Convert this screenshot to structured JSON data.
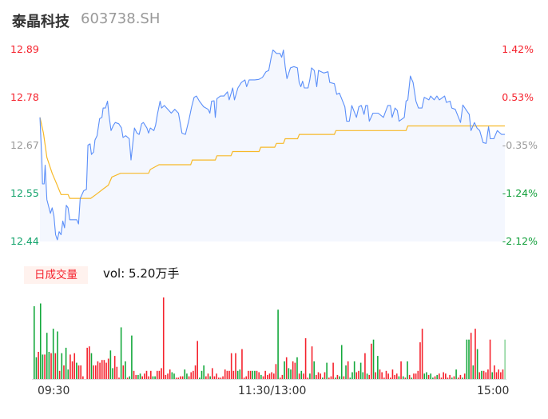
{
  "header": {
    "name": "泰晶科技",
    "code": "603738.SH"
  },
  "chart_data": {
    "type": "line",
    "price_axis": {
      "ylim": [
        12.44,
        12.89
      ],
      "ticks": [
        "12.89",
        "12.78",
        "12.67",
        "12.55",
        "12.44"
      ]
    },
    "percent_axis": {
      "ticks": [
        "1.42%",
        "0.53%",
        "-0.35%",
        "-1.24%",
        "-2.12%"
      ]
    },
    "x_ticks": [
      "09:30",
      "11:30/13:00",
      "15:00"
    ],
    "x_range_minutes": [
      0,
      240
    ],
    "colors": {
      "price": "#5b8ff9",
      "avg": "#f7b928",
      "up": "#f5222d",
      "down": "#13a83b",
      "up_text": "#f5222d",
      "down_text": "#12a36b",
      "flat_text": "#999999",
      "area": "#f4f7fe"
    },
    "price_series": [
      [
        0,
        12.731
      ],
      [
        1,
        12.631
      ],
      [
        1.3,
        12.575
      ],
      [
        2.2,
        12.575
      ],
      [
        2.7,
        12.619
      ],
      [
        3.6,
        12.538
      ],
      [
        5.4,
        12.506
      ],
      [
        6.3,
        12.519
      ],
      [
        7.2,
        12.5
      ],
      [
        8.1,
        12.456
      ],
      [
        9,
        12.444
      ],
      [
        9.9,
        12.463
      ],
      [
        10.9,
        12.456
      ],
      [
        11.8,
        12.488
      ],
      [
        12.7,
        12.472
      ],
      [
        13.6,
        12.525
      ],
      [
        14.5,
        12.519
      ],
      [
        15.4,
        12.491
      ],
      [
        19,
        12.491
      ],
      [
        19.9,
        12.481
      ],
      [
        20.8,
        12.541
      ],
      [
        22.6,
        12.559
      ],
      [
        24,
        12.562
      ],
      [
        24.8,
        12.666
      ],
      [
        25.9,
        12.669
      ],
      [
        26.6,
        12.644
      ],
      [
        27.7,
        12.65
      ],
      [
        28.4,
        12.678
      ],
      [
        29.5,
        12.688
      ],
      [
        30.8,
        12.728
      ],
      [
        32,
        12.731
      ],
      [
        32.6,
        12.753
      ],
      [
        33.8,
        12.753
      ],
      [
        34.9,
        12.769
      ],
      [
        35.6,
        12.738
      ],
      [
        36.7,
        12.7
      ],
      [
        38,
        12.713
      ],
      [
        38.9,
        12.719
      ],
      [
        40.7,
        12.716
      ],
      [
        42.1,
        12.706
      ],
      [
        42.9,
        12.684
      ],
      [
        44.3,
        12.688
      ],
      [
        46.1,
        12.681
      ],
      [
        47,
        12.631
      ],
      [
        47.9,
        12.669
      ],
      [
        48.8,
        12.706
      ],
      [
        50.1,
        12.694
      ],
      [
        51.2,
        12.691
      ],
      [
        52.5,
        12.716
      ],
      [
        53.4,
        12.719
      ],
      [
        55.2,
        12.706
      ],
      [
        56.1,
        12.694
      ],
      [
        57,
        12.706
      ],
      [
        58.8,
        12.7
      ],
      [
        59.7,
        12.713
      ],
      [
        60.6,
        12.738
      ],
      [
        62,
        12.769
      ],
      [
        62.8,
        12.753
      ],
      [
        64.2,
        12.759
      ],
      [
        66,
        12.75
      ],
      [
        67.8,
        12.741
      ],
      [
        69.6,
        12.75
      ],
      [
        71.5,
        12.741
      ],
      [
        73.3,
        12.694
      ],
      [
        75.1,
        12.691
      ],
      [
        76.9,
        12.725
      ],
      [
        78.3,
        12.756
      ],
      [
        79.6,
        12.778
      ],
      [
        80.8,
        12.781
      ],
      [
        82.3,
        12.769
      ],
      [
        84.5,
        12.756
      ],
      [
        86.8,
        12.75
      ],
      [
        87.7,
        12.741
      ],
      [
        88.6,
        12.769
      ],
      [
        89.9,
        12.77
      ],
      [
        90.5,
        12.731
      ],
      [
        91.4,
        12.775
      ],
      [
        93.2,
        12.781
      ],
      [
        95,
        12.781
      ],
      [
        96.8,
        12.791
      ],
      [
        97.7,
        12.772
      ],
      [
        99.5,
        12.8
      ],
      [
        100.4,
        12.772
      ],
      [
        102.2,
        12.8
      ],
      [
        104,
        12.813
      ],
      [
        105.8,
        12.819
      ],
      [
        106.7,
        12.803
      ],
      [
        108,
        12.819
      ],
      [
        110.9,
        12.819
      ],
      [
        113,
        12.82
      ],
      [
        114.9,
        12.825
      ],
      [
        116.7,
        12.838
      ],
      [
        118.1,
        12.841
      ],
      [
        119.4,
        12.872
      ],
      [
        120.3,
        12.889
      ],
      [
        122.1,
        12.881
      ],
      [
        123.9,
        12.881
      ],
      [
        124.8,
        12.872
      ],
      [
        125.7,
        12.889
      ],
      [
        126.6,
        12.85
      ],
      [
        127.5,
        12.822
      ],
      [
        129.3,
        12.847
      ],
      [
        131.1,
        12.85
      ],
      [
        132.9,
        12.847
      ],
      [
        133.8,
        12.813
      ],
      [
        134.7,
        12.803
      ],
      [
        135.6,
        12.816
      ],
      [
        136.5,
        12.8
      ],
      [
        138.4,
        12.8
      ],
      [
        139.3,
        12.819
      ],
      [
        140.2,
        12.847
      ],
      [
        141.6,
        12.841
      ],
      [
        142.9,
        12.803
      ],
      [
        143.8,
        12.841
      ],
      [
        146.5,
        12.835
      ],
      [
        148.7,
        12.838
      ],
      [
        149.6,
        12.813
      ],
      [
        152,
        12.81
      ],
      [
        153.2,
        12.785
      ],
      [
        154.6,
        12.788
      ],
      [
        157.4,
        12.756
      ],
      [
        158.3,
        12.722
      ],
      [
        159.7,
        12.722
      ],
      [
        161,
        12.759
      ],
      [
        163.4,
        12.731
      ],
      [
        164.6,
        12.756
      ],
      [
        165.9,
        12.759
      ],
      [
        167.3,
        12.738
      ],
      [
        168.2,
        12.759
      ],
      [
        169.1,
        12.759
      ],
      [
        170,
        12.722
      ],
      [
        171.9,
        12.741
      ],
      [
        174.6,
        12.741
      ],
      [
        177.3,
        12.731
      ],
      [
        178.1,
        12.741
      ],
      [
        179.6,
        12.759
      ],
      [
        180.9,
        12.759
      ],
      [
        181.8,
        12.731
      ],
      [
        183.3,
        12.753
      ],
      [
        184.5,
        12.747
      ],
      [
        185.4,
        12.722
      ],
      [
        188.1,
        12.731
      ],
      [
        189,
        12.769
      ],
      [
        189.9,
        12.772
      ],
      [
        191.2,
        12.828
      ],
      [
        192.6,
        12.813
      ],
      [
        194.1,
        12.769
      ],
      [
        195.4,
        12.753
      ],
      [
        197.2,
        12.753
      ],
      [
        198.4,
        12.778
      ],
      [
        200.8,
        12.772
      ],
      [
        201.7,
        12.781
      ],
      [
        203.5,
        12.772
      ],
      [
        204.9,
        12.781
      ],
      [
        206.2,
        12.772
      ],
      [
        208.9,
        12.781
      ],
      [
        209.8,
        12.766
      ],
      [
        211.7,
        12.769
      ],
      [
        212.6,
        12.753
      ],
      [
        214.4,
        12.75
      ],
      [
        217.1,
        12.719
      ],
      [
        218.3,
        12.76
      ],
      [
        219.8,
        12.75
      ],
      [
        221.6,
        12.738
      ],
      [
        222.5,
        12.7
      ],
      [
        224.3,
        12.719
      ],
      [
        225.6,
        12.706
      ],
      [
        227,
        12.7
      ],
      [
        228.8,
        12.672
      ],
      [
        230.3,
        12.67
      ],
      [
        231.6,
        12.709
      ],
      [
        232.5,
        12.681
      ],
      [
        234.3,
        12.681
      ],
      [
        236.1,
        12.7
      ],
      [
        238.3,
        12.691
      ],
      [
        240,
        12.691
      ]
    ],
    "avg_series": [
      [
        0,
        12.731
      ],
      [
        1.8,
        12.694
      ],
      [
        3.6,
        12.637
      ],
      [
        6.3,
        12.6
      ],
      [
        8.1,
        12.581
      ],
      [
        10.9,
        12.55
      ],
      [
        14.5,
        12.55
      ],
      [
        15.4,
        12.541
      ],
      [
        26.2,
        12.541
      ],
      [
        28.9,
        12.55
      ],
      [
        32.6,
        12.563
      ],
      [
        35.3,
        12.572
      ],
      [
        37.1,
        12.591
      ],
      [
        41.6,
        12.6
      ],
      [
        56.1,
        12.6
      ],
      [
        57,
        12.609
      ],
      [
        61.5,
        12.62
      ],
      [
        77.8,
        12.62
      ],
      [
        78.7,
        12.631
      ],
      [
        90.5,
        12.631
      ],
      [
        91.4,
        12.641
      ],
      [
        98.6,
        12.641
      ],
      [
        99.5,
        12.651
      ],
      [
        113.1,
        12.651
      ],
      [
        114,
        12.661
      ],
      [
        121.2,
        12.661
      ],
      [
        122.1,
        12.67
      ],
      [
        125.7,
        12.67
      ],
      [
        126.6,
        12.681
      ],
      [
        133,
        12.681
      ],
      [
        133.9,
        12.691
      ],
      [
        152,
        12.691
      ],
      [
        152.8,
        12.7
      ],
      [
        189,
        12.7
      ],
      [
        189.9,
        12.711
      ],
      [
        240,
        12.711
      ]
    ],
    "volume": {
      "label": "日成交量",
      "text": "vol: 5.20万手",
      "bars": [
        "g268",
        "g80",
        "r100",
        "g278",
        "g90",
        "r90",
        "g170",
        "g100",
        "r95",
        "g185",
        "r95",
        "g175",
        "r30",
        "g95",
        "r50",
        "g115",
        "g35",
        "r90",
        "r65",
        "r95",
        "g60",
        "r50",
        "r50",
        "r10",
        "r0",
        "r115",
        "r120",
        "g95",
        "r50",
        "r50",
        "r65",
        "r60",
        "r70",
        "r70",
        "r60",
        "r75",
        "g105",
        "g40",
        "r85",
        "r45",
        "r5",
        "g190",
        "r50",
        "g65",
        "r5",
        "g10",
        "g160",
        "r30",
        "r15",
        "g15",
        "g20",
        "r10",
        "r20",
        "r30",
        "r10",
        "r30",
        "g10",
        "g10",
        "r30",
        "r30",
        "r40",
        "r300",
        "r15",
        "r20",
        "r35",
        "g25",
        "g20",
        "r5",
        "r5",
        "r10",
        "r10",
        "g35",
        "g20",
        "r10",
        "r25",
        "r30",
        "r50",
        "r140",
        "g5",
        "g30",
        "g50",
        "r10",
        "r20",
        "g10",
        "r40",
        "r10",
        "r20",
        "r5",
        "r5",
        "r10",
        "r35",
        "r30",
        "r30",
        "r95",
        "r30",
        "r95",
        "g30",
        "g35",
        "r110",
        "r5",
        "r10",
        "r30",
        "r30",
        "g30",
        "g30",
        "r30",
        "r25",
        "g15",
        "r10",
        "r30",
        "r15",
        "r20",
        "r25",
        "r20",
        "r55",
        "g255",
        "r5",
        "r15",
        "g65",
        "r80",
        "g40",
        "g35",
        "r65",
        "r60",
        "g80",
        "r20",
        "g30",
        "r20",
        "r150",
        "r5",
        "g20",
        "r120",
        "g65",
        "r15",
        "r25",
        "r20",
        "g5",
        "r25",
        "g60",
        "r5",
        "r10",
        "r60",
        "g5",
        "r15",
        "g10",
        "g125",
        "r10",
        "g50",
        "r65",
        "g5",
        "g25",
        "g65",
        "r25",
        "r30",
        "g60",
        "g25",
        "r95",
        "g20",
        "r15",
        "r130",
        "g145",
        "r25",
        "g85",
        "r35",
        "r25",
        "r5",
        "r30",
        "r20",
        "r5",
        "r35",
        "r15",
        "r20",
        "g10",
        "r65",
        "g10",
        "r5",
        "g65",
        "r15",
        "g5",
        "r20",
        "r20",
        "r30",
        "r135",
        "r185",
        "g20",
        "g25",
        "r15",
        "g20",
        "g5",
        "r10",
        "g15",
        "r20",
        "r5",
        "r25",
        "r20",
        "r5",
        "r15",
        "g5",
        "r10",
        "g35",
        "r5",
        "r15",
        "g5",
        "r20",
        "g145",
        "g145",
        "r170",
        "g50",
        "r185",
        "g110",
        "r25",
        "g30",
        "r30",
        "r25",
        "r35",
        "r145",
        "g25",
        "r50",
        "r25",
        "r35",
        "r25",
        "r35",
        "l145"
      ]
    }
  }
}
